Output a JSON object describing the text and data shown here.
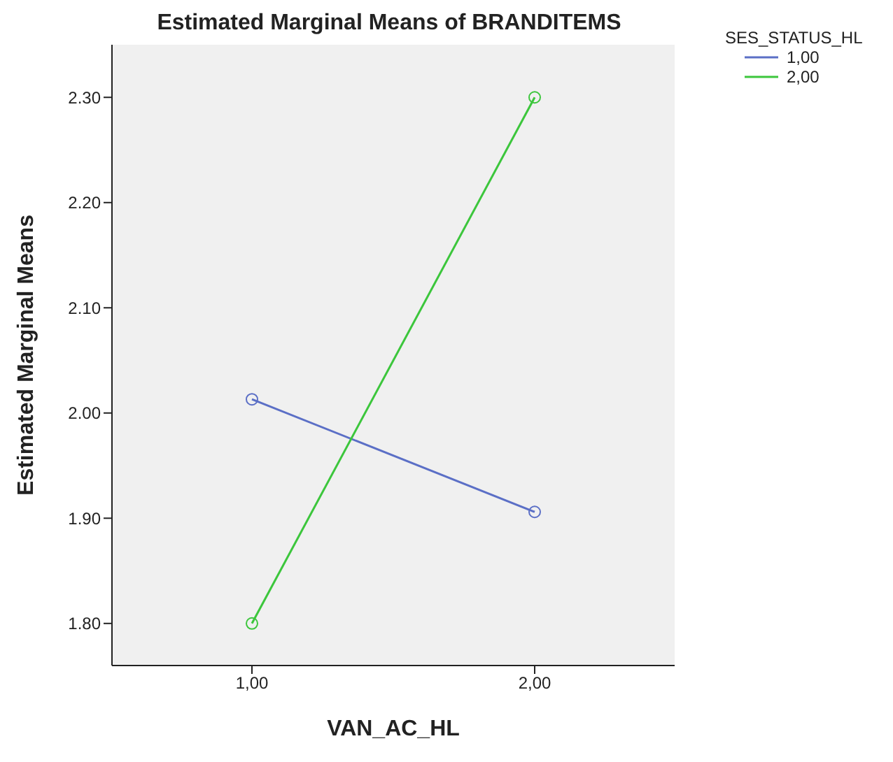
{
  "chart_data": {
    "type": "line",
    "title": "Estimated Marginal Means of BRANDITEMS",
    "xlabel": "VAN_AC_HL",
    "ylabel": "Estimated Marginal Means",
    "legend_title": "SES_STATUS_HL",
    "categories": [
      "1,00",
      "2,00"
    ],
    "series": [
      {
        "name": "1,00",
        "color": "#5b6fc6",
        "values": [
          2.013,
          1.906
        ]
      },
      {
        "name": "2,00",
        "color": "#3cc63c",
        "values": [
          1.8,
          2.3
        ]
      }
    ],
    "ylim": [
      1.76,
      2.35
    ],
    "yticks": [
      {
        "value": 1.8,
        "label": "1.80"
      },
      {
        "value": 1.9,
        "label": "1.90"
      },
      {
        "value": 2.0,
        "label": "2.00"
      },
      {
        "value": 2.1,
        "label": "2.10"
      },
      {
        "value": 2.2,
        "label": "2.20"
      },
      {
        "value": 2.3,
        "label": "2.30"
      }
    ],
    "grid": false,
    "legend": "top right",
    "marker": "circle",
    "line_style": "solid"
  }
}
